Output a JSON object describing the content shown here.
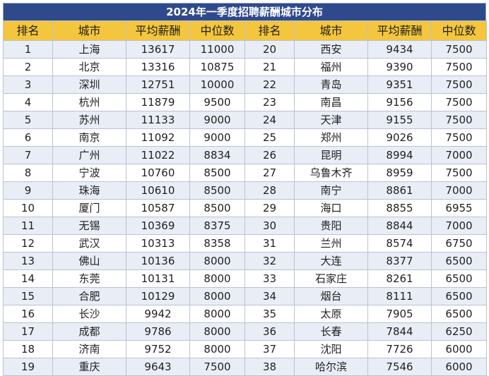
{
  "title": "2024年一季度招聘薪酬城市分布",
  "headers": [
    "排名",
    "城市",
    "平均薪酬",
    "中位数",
    "排名",
    "城市",
    "平均薪酬",
    "中位数"
  ],
  "rows": [
    [
      "1",
      "上海",
      "13617",
      "11000",
      "20",
      "西安",
      "9434",
      "7500"
    ],
    [
      "2",
      "北京",
      "13316",
      "10875",
      "21",
      "福州",
      "9390",
      "7500"
    ],
    [
      "3",
      "深圳",
      "12751",
      "10000",
      "22",
      "青岛",
      "9351",
      "7500"
    ],
    [
      "4",
      "杭州",
      "11879",
      "9500",
      "23",
      "南昌",
      "9156",
      "7500"
    ],
    [
      "5",
      "苏州",
      "11133",
      "9000",
      "24",
      "天津",
      "9155",
      "7500"
    ],
    [
      "6",
      "南京",
      "11092",
      "9000",
      "25",
      "郑州",
      "9026",
      "7500"
    ],
    [
      "7",
      "广州",
      "11022",
      "8834",
      "26",
      "昆明",
      "8994",
      "7000"
    ],
    [
      "8",
      "宁波",
      "10760",
      "8500",
      "27",
      "乌鲁木齐",
      "8959",
      "7500"
    ],
    [
      "9",
      "珠海",
      "10610",
      "8500",
      "28",
      "南宁",
      "8861",
      "7000"
    ],
    [
      "10",
      "厦门",
      "10587",
      "8500",
      "29",
      "海口",
      "8855",
      "6955"
    ],
    [
      "11",
      "无锡",
      "10369",
      "8375",
      "30",
      "贵阳",
      "8844",
      "7000"
    ],
    [
      "12",
      "武汉",
      "10313",
      "8358",
      "31",
      "兰州",
      "8574",
      "6750"
    ],
    [
      "13",
      "佛山",
      "10136",
      "8000",
      "32",
      "大连",
      "8377",
      "6500"
    ],
    [
      "14",
      "东莞",
      "10131",
      "8000",
      "33",
      "石家庄",
      "8261",
      "6500"
    ],
    [
      "15",
      "合肥",
      "10129",
      "8000",
      "34",
      "烟台",
      "8111",
      "6500"
    ],
    [
      "16",
      "长沙",
      "9942",
      "8000",
      "35",
      "太原",
      "7905",
      "6500"
    ],
    [
      "17",
      "成都",
      "9786",
      "8000",
      "36",
      "长春",
      "7844",
      "6250"
    ],
    [
      "18",
      "济南",
      "9752",
      "8000",
      "37",
      "沈阳",
      "7726",
      "6000"
    ],
    [
      "19",
      "重庆",
      "9643",
      "7500",
      "38",
      "哈尔滨",
      "7546",
      "6000"
    ]
  ]
}
